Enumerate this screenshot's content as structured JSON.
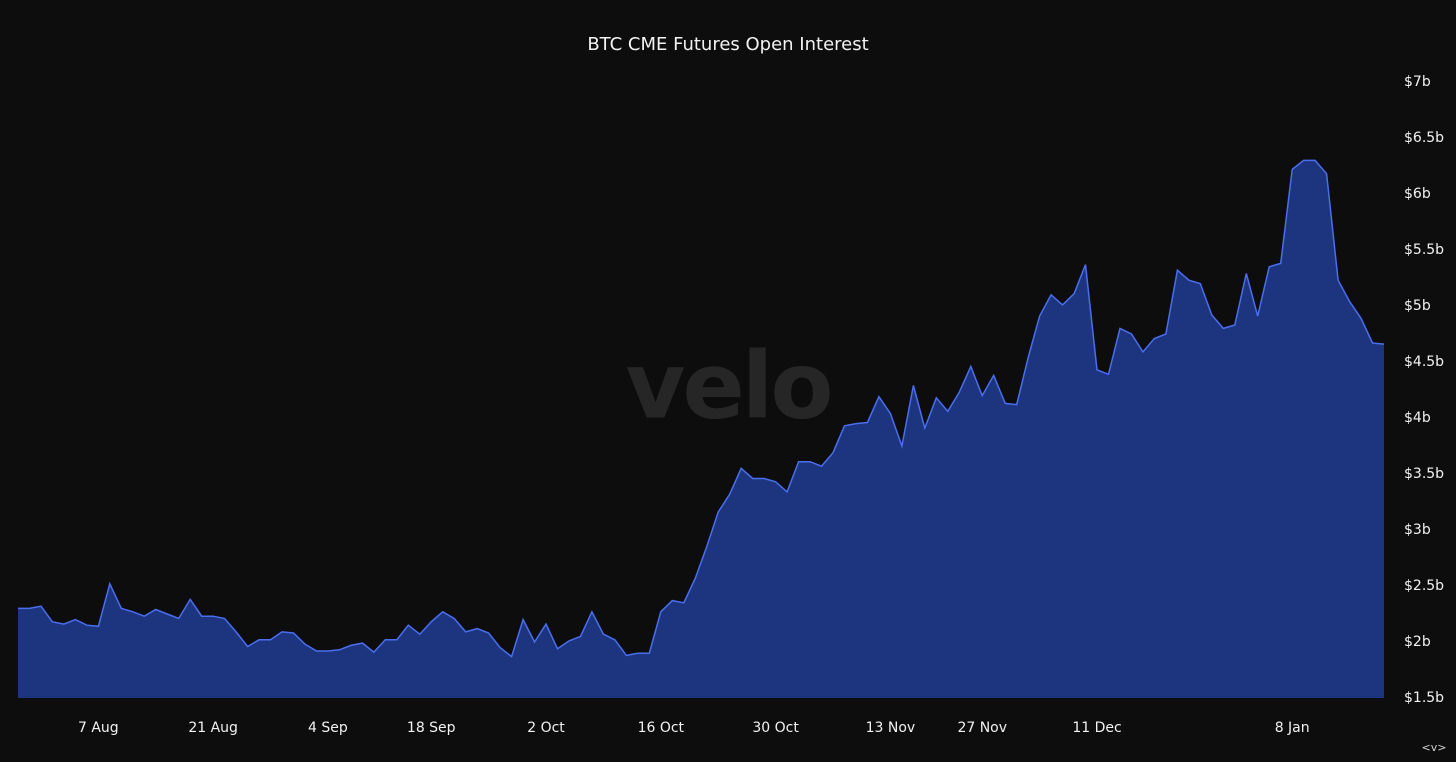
{
  "chart_data": {
    "type": "area",
    "title": "BTC CME Futures Open Interest",
    "watermark": "velo",
    "corner_label": "<v>",
    "categories": [
      null,
      null,
      null,
      null,
      null,
      null,
      null,
      "7 Aug",
      null,
      null,
      null,
      null,
      null,
      null,
      null,
      null,
      null,
      "21 Aug",
      null,
      null,
      null,
      null,
      null,
      null,
      null,
      null,
      null,
      "4 Sep",
      null,
      null,
      null,
      null,
      null,
      null,
      null,
      null,
      "18 Sep",
      null,
      null,
      null,
      null,
      null,
      null,
      null,
      null,
      null,
      "2 Oct",
      null,
      null,
      null,
      null,
      null,
      null,
      null,
      null,
      null,
      "16 Oct",
      null,
      null,
      null,
      null,
      null,
      null,
      null,
      null,
      null,
      "30 Oct",
      null,
      null,
      null,
      null,
      null,
      null,
      null,
      null,
      null,
      "13 Nov",
      null,
      null,
      null,
      null,
      null,
      null,
      null,
      "27 Nov",
      null,
      null,
      null,
      null,
      null,
      null,
      null,
      null,
      null,
      "11 Dec",
      null,
      null,
      null,
      null,
      null,
      null,
      null,
      null,
      null,
      null,
      null,
      null,
      null,
      null,
      null,
      null,
      "8 Jan",
      null,
      null,
      null,
      null,
      null,
      null,
      null,
      null
    ],
    "series": [
      {
        "name": "Open Interest",
        "color": "#4a6ef0",
        "fill": "#1e3888",
        "values": [
          2.3,
          2.3,
          2.32,
          2.18,
          2.16,
          2.2,
          2.15,
          2.14,
          2.52,
          2.3,
          2.27,
          2.23,
          2.29,
          2.25,
          2.21,
          2.38,
          2.23,
          2.23,
          2.21,
          2.09,
          1.96,
          2.02,
          2.02,
          2.09,
          2.08,
          1.98,
          1.92,
          1.92,
          1.93,
          1.97,
          1.99,
          1.91,
          2.02,
          2.02,
          2.15,
          2.07,
          2.18,
          2.27,
          2.21,
          2.09,
          2.12,
          2.08,
          1.95,
          1.87,
          2.2,
          2.0,
          2.16,
          1.94,
          2.01,
          2.05,
          2.27,
          2.07,
          2.02,
          1.88,
          1.9,
          1.9,
          2.27,
          2.37,
          2.35,
          2.57,
          2.85,
          3.16,
          3.32,
          3.55,
          3.46,
          3.46,
          3.43,
          3.34,
          3.61,
          3.61,
          3.57,
          3.69,
          3.93,
          3.95,
          3.96,
          4.19,
          4.04,
          3.75,
          4.29,
          3.91,
          4.18,
          4.06,
          4.23,
          4.46,
          4.2,
          4.38,
          4.13,
          4.12,
          4.54,
          4.91,
          5.1,
          5.01,
          5.11,
          5.37,
          4.43,
          4.39,
          4.8,
          4.75,
          4.59,
          4.71,
          4.75,
          5.32,
          5.23,
          5.2,
          4.92,
          4.8,
          4.83,
          5.29,
          4.91,
          5.35,
          5.38,
          6.22,
          6.3,
          6.3,
          6.18,
          5.23,
          5.04,
          4.89,
          4.67,
          4.66
        ]
      }
    ],
    "ylim": [
      1.5,
      7
    ],
    "yticks": [
      {
        "value": 1.5,
        "label": "$1.5b"
      },
      {
        "value": 2,
        "label": "$2b"
      },
      {
        "value": 2.5,
        "label": "$2.5b"
      },
      {
        "value": 3,
        "label": "$3b"
      },
      {
        "value": 3.5,
        "label": "$3.5b"
      },
      {
        "value": 4,
        "label": "$4b"
      },
      {
        "value": 4.5,
        "label": "$4.5b"
      },
      {
        "value": 5,
        "label": "$5b"
      },
      {
        "value": 5.5,
        "label": "$5.5b"
      },
      {
        "value": 6,
        "label": "$6b"
      },
      {
        "value": 6.5,
        "label": "$6.5b"
      },
      {
        "value": 7,
        "label": "$7b"
      }
    ],
    "grid": false
  }
}
